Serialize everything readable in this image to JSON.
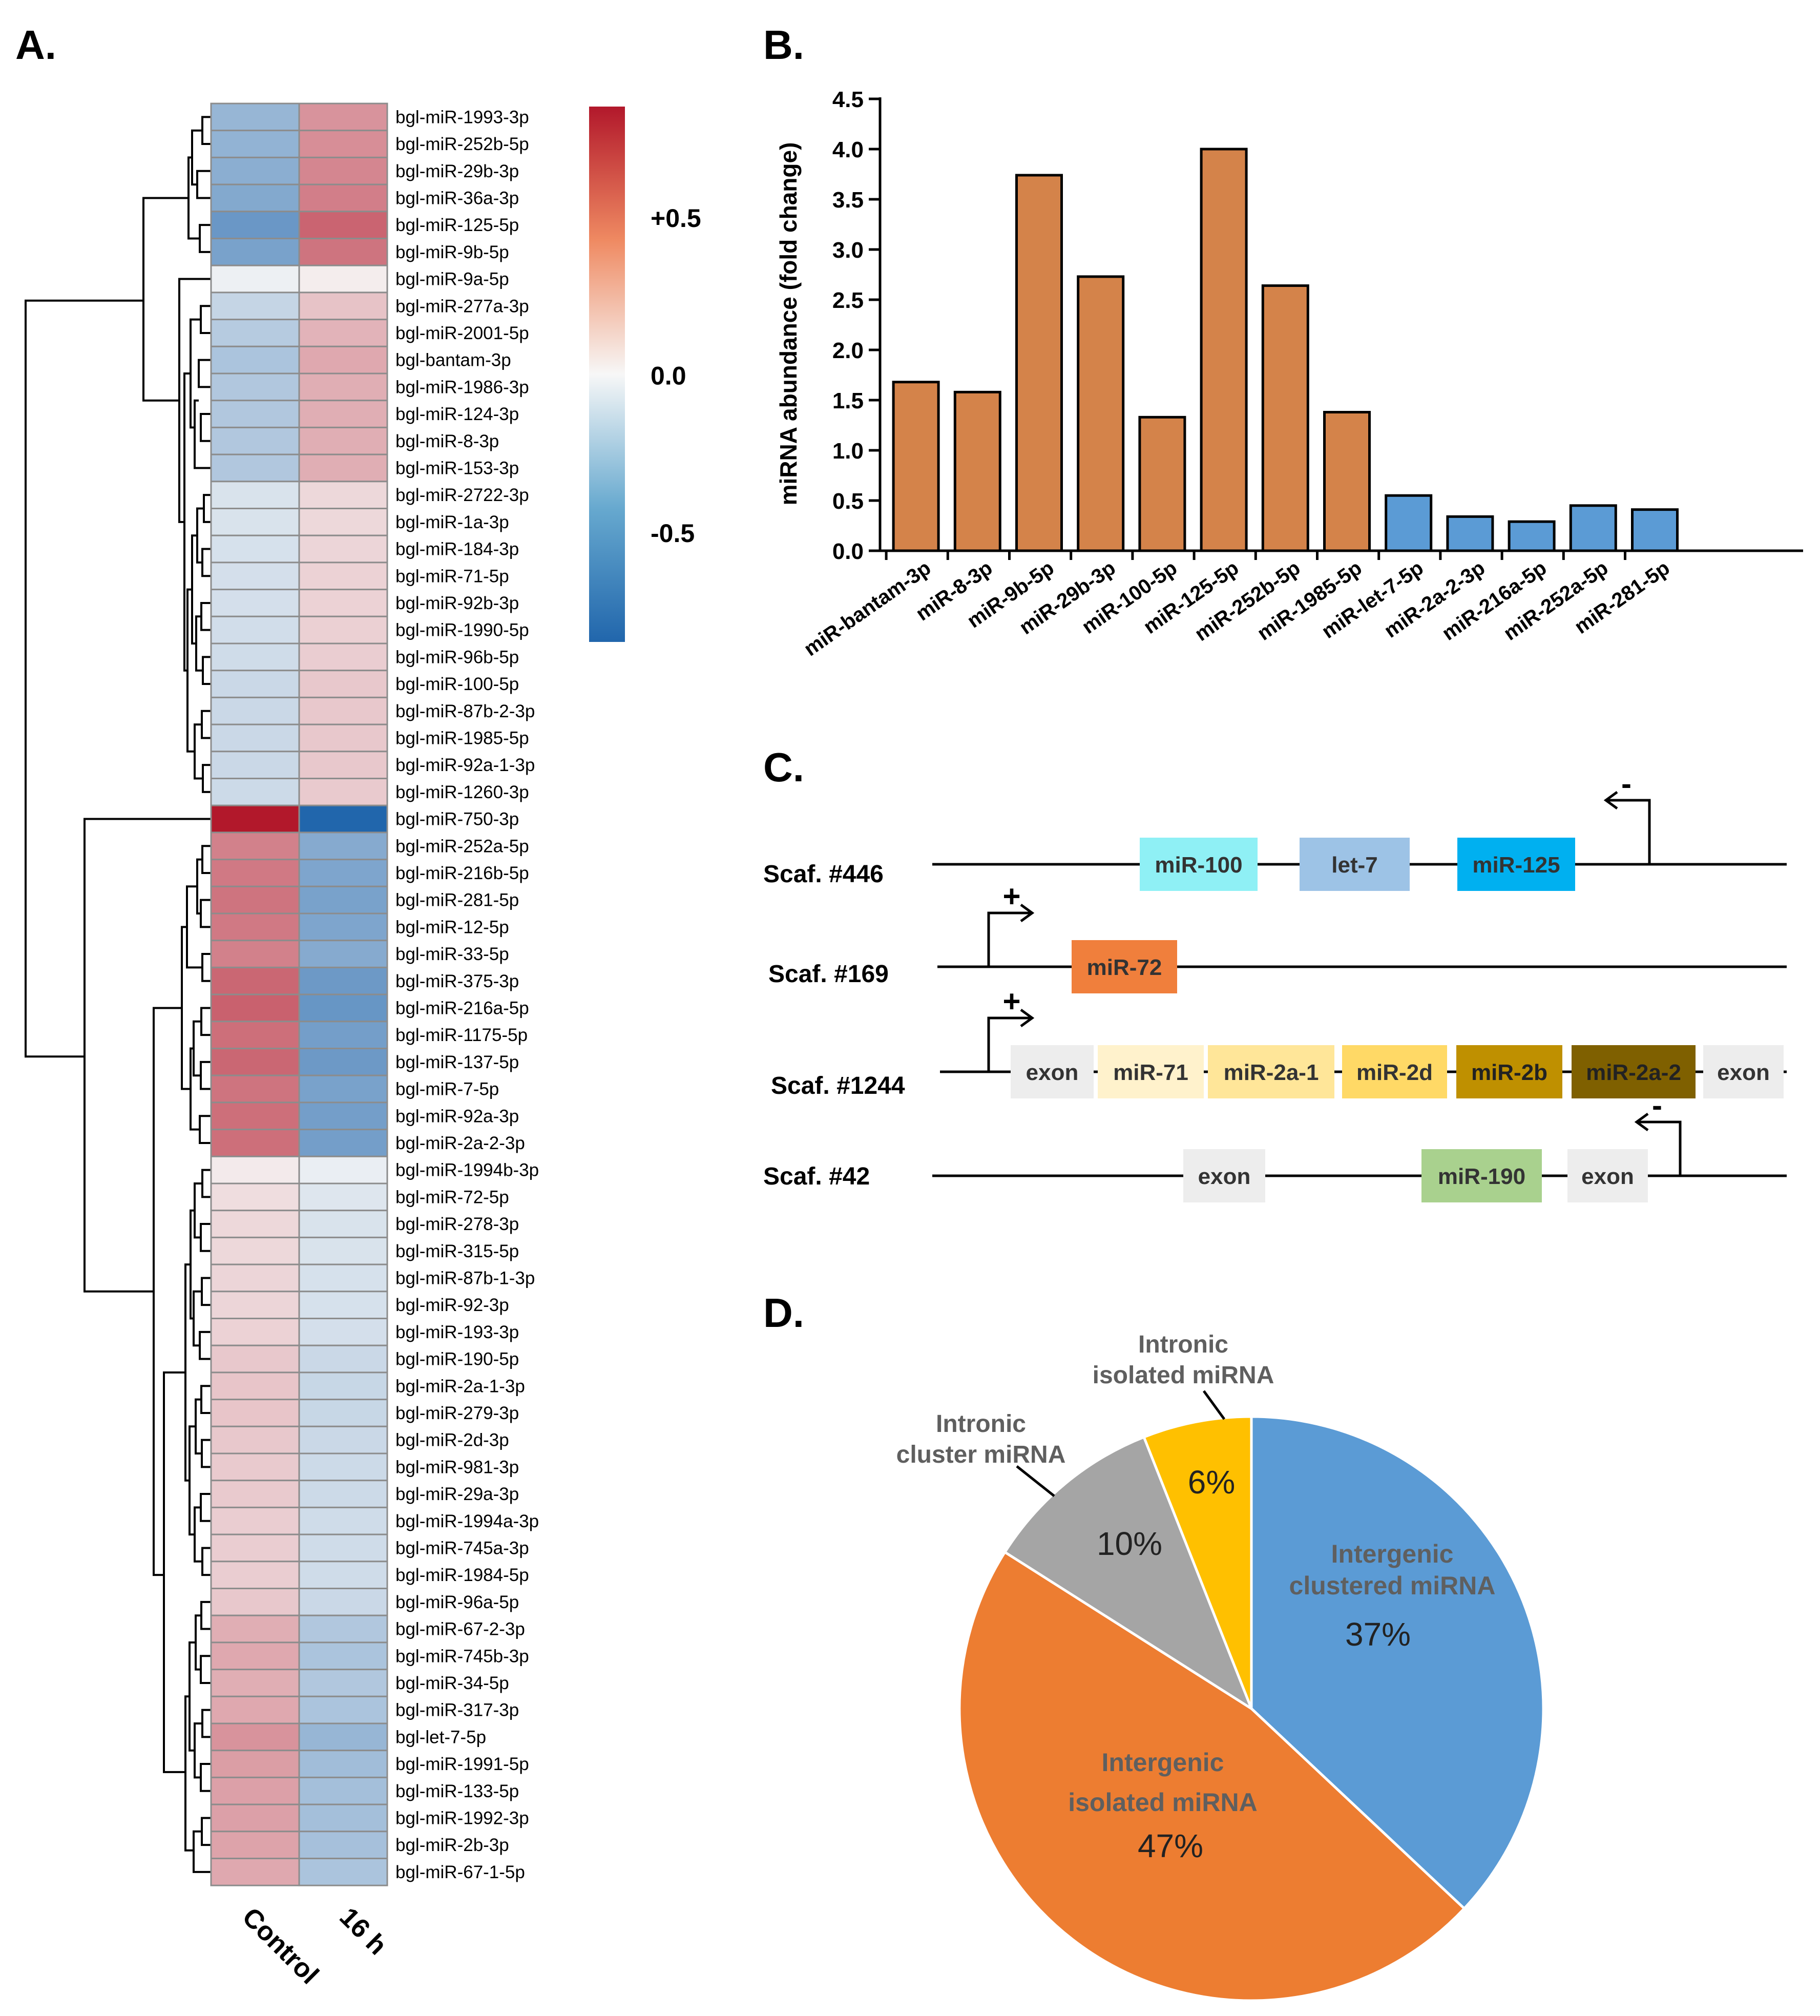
{
  "panel_labels": {
    "a": "A.",
    "b": "B.",
    "c": "C.",
    "d": "D."
  },
  "chart_data": [
    {
      "panel": "A",
      "type": "heatmap",
      "columns": [
        "Control",
        "16 h"
      ],
      "scale_ticks": [
        {
          "label": "+0.5",
          "value": 0.5
        },
        {
          "label": "0.0",
          "value": 0.0
        },
        {
          "label": "-0.5",
          "value": -0.5
        }
      ],
      "scale_range": [
        -0.85,
        0.85
      ],
      "colors": {
        "low": "#2166ac",
        "mid": "#f7f7f7",
        "high": "#b2182b"
      },
      "rows": [
        {
          "label": "bgl-miR-1993-3p",
          "values": [
            -0.38,
            0.38
          ]
        },
        {
          "label": "bgl-miR-252b-5p",
          "values": [
            -0.4,
            0.4
          ]
        },
        {
          "label": "bgl-miR-29b-3p",
          "values": [
            -0.43,
            0.43
          ]
        },
        {
          "label": "bgl-miR-36a-3p",
          "values": [
            -0.46,
            0.46
          ]
        },
        {
          "label": "bgl-miR-125-5p",
          "values": [
            -0.56,
            0.56
          ]
        },
        {
          "label": "bgl-miR-9b-5p",
          "values": [
            -0.5,
            0.5
          ]
        },
        {
          "label": "bgl-miR-9a-5p",
          "values": [
            -0.04,
            0.04
          ]
        },
        {
          "label": "bgl-miR-277a-3p",
          "values": [
            -0.2,
            0.2
          ]
        },
        {
          "label": "bgl-miR-2001-5p",
          "values": [
            -0.26,
            0.26
          ]
        },
        {
          "label": "bgl-bantam-3p",
          "values": [
            -0.3,
            0.3
          ]
        },
        {
          "label": "bgl-miR-1986-3p",
          "values": [
            -0.28,
            0.28
          ]
        },
        {
          "label": "bgl-miR-124-3p",
          "values": [
            -0.28,
            0.28
          ]
        },
        {
          "label": "bgl-miR-8-3p",
          "values": [
            -0.28,
            0.28
          ]
        },
        {
          "label": "bgl-miR-153-3p",
          "values": [
            -0.28,
            0.28
          ]
        },
        {
          "label": "bgl-miR-2722-3p",
          "values": [
            -0.12,
            0.12
          ]
        },
        {
          "label": "bgl-miR-1a-3p",
          "values": [
            -0.12,
            0.12
          ]
        },
        {
          "label": "bgl-miR-184-3p",
          "values": [
            -0.13,
            0.13
          ]
        },
        {
          "label": "bgl-miR-71-5p",
          "values": [
            -0.14,
            0.14
          ]
        },
        {
          "label": "bgl-miR-92b-3p",
          "values": [
            -0.14,
            0.14
          ]
        },
        {
          "label": "bgl-miR-1990-5p",
          "values": [
            -0.15,
            0.15
          ]
        },
        {
          "label": "bgl-miR-96b-5p",
          "values": [
            -0.16,
            0.16
          ]
        },
        {
          "label": "bgl-miR-100-5p",
          "values": [
            -0.18,
            0.18
          ]
        },
        {
          "label": "bgl-miR-87b-2-3p",
          "values": [
            -0.18,
            0.18
          ]
        },
        {
          "label": "bgl-miR-1985-5p",
          "values": [
            -0.18,
            0.18
          ]
        },
        {
          "label": "bgl-miR-92a-1-3p",
          "values": [
            -0.18,
            0.18
          ]
        },
        {
          "label": "bgl-miR-1260-3p",
          "values": [
            -0.17,
            0.17
          ]
        },
        {
          "label": "bgl-miR-750-3p",
          "values": [
            0.85,
            -0.85
          ]
        },
        {
          "label": "bgl-miR-252a-5p",
          "values": [
            0.45,
            -0.45
          ]
        },
        {
          "label": "bgl-miR-216b-5p",
          "values": [
            0.48,
            -0.48
          ]
        },
        {
          "label": "bgl-miR-281-5p",
          "values": [
            0.5,
            -0.5
          ]
        },
        {
          "label": "bgl-miR-12-5p",
          "values": [
            0.48,
            -0.48
          ]
        },
        {
          "label": "bgl-miR-33-5p",
          "values": [
            0.45,
            -0.45
          ]
        },
        {
          "label": "bgl-miR-375-3p",
          "values": [
            0.55,
            -0.55
          ]
        },
        {
          "label": "bgl-miR-216a-5p",
          "values": [
            0.57,
            -0.57
          ]
        },
        {
          "label": "bgl-miR-1175-5p",
          "values": [
            0.52,
            -0.52
          ]
        },
        {
          "label": "bgl-miR-137-5p",
          "values": [
            0.55,
            -0.55
          ]
        },
        {
          "label": "bgl-miR-7-5p",
          "values": [
            0.5,
            -0.5
          ]
        },
        {
          "label": "bgl-miR-92a-3p",
          "values": [
            0.52,
            -0.52
          ]
        },
        {
          "label": "bgl-miR-2a-2-3p",
          "values": [
            0.52,
            -0.52
          ]
        },
        {
          "label": "bgl-miR-1994b-3p",
          "values": [
            0.05,
            -0.05
          ]
        },
        {
          "label": "bgl-miR-72-5p",
          "values": [
            0.1,
            -0.1
          ]
        },
        {
          "label": "bgl-miR-278-3p",
          "values": [
            0.12,
            -0.12
          ]
        },
        {
          "label": "bgl-miR-315-5p",
          "values": [
            0.12,
            -0.12
          ]
        },
        {
          "label": "bgl-miR-87b-1-3p",
          "values": [
            0.13,
            -0.13
          ]
        },
        {
          "label": "bgl-miR-92-3p",
          "values": [
            0.13,
            -0.13
          ]
        },
        {
          "label": "bgl-miR-193-3p",
          "values": [
            0.14,
            -0.14
          ]
        },
        {
          "label": "bgl-miR-190-5p",
          "values": [
            0.18,
            -0.18
          ]
        },
        {
          "label": "bgl-miR-2a-1-3p",
          "values": [
            0.19,
            -0.19
          ]
        },
        {
          "label": "bgl-miR-279-3p",
          "values": [
            0.19,
            -0.19
          ]
        },
        {
          "label": "bgl-miR-2d-3p",
          "values": [
            0.18,
            -0.18
          ]
        },
        {
          "label": "bgl-miR-981-3p",
          "values": [
            0.17,
            -0.17
          ]
        },
        {
          "label": "bgl-miR-29a-3p",
          "values": [
            0.17,
            -0.17
          ]
        },
        {
          "label": "bgl-miR-1994a-3p",
          "values": [
            0.16,
            -0.16
          ]
        },
        {
          "label": "bgl-miR-745a-3p",
          "values": [
            0.16,
            -0.16
          ]
        },
        {
          "label": "bgl-miR-1984-5p",
          "values": [
            0.16,
            -0.16
          ]
        },
        {
          "label": "bgl-miR-96a-5p",
          "values": [
            0.18,
            -0.18
          ]
        },
        {
          "label": "bgl-miR-67-2-3p",
          "values": [
            0.28,
            -0.28
          ]
        },
        {
          "label": "bgl-miR-745b-3p",
          "values": [
            0.3,
            -0.3
          ]
        },
        {
          "label": "bgl-miR-34-5p",
          "values": [
            0.28,
            -0.28
          ]
        },
        {
          "label": "bgl-miR-317-3p",
          "values": [
            0.3,
            -0.3
          ]
        },
        {
          "label": "bgl-let-7-5p",
          "values": [
            0.38,
            -0.38
          ]
        },
        {
          "label": "bgl-miR-1991-5p",
          "values": [
            0.34,
            -0.34
          ]
        },
        {
          "label": "bgl-miR-133-5p",
          "values": [
            0.33,
            -0.33
          ]
        },
        {
          "label": "bgl-miR-1992-3p",
          "values": [
            0.33,
            -0.33
          ]
        },
        {
          "label": "bgl-miR-2b-3p",
          "values": [
            0.32,
            -0.32
          ]
        },
        {
          "label": "bgl-miR-67-1-5p",
          "values": [
            0.3,
            -0.3
          ]
        }
      ]
    },
    {
      "panel": "B",
      "type": "bar",
      "ylabel": "miRNA abundance (fold change)",
      "ylim": [
        0,
        4.5
      ],
      "yticks": [
        "0.0",
        "0.5",
        "1.0",
        "1.5",
        "2.0",
        "2.5",
        "3.0",
        "3.5",
        "4.0",
        "4.5"
      ],
      "categories": [
        "miR-bantam-3p",
        "miR-8-3p",
        "miR-9b-5p",
        "miR-29b-3p",
        "miR-100-5p",
        "miR-125-5p",
        "miR-252b-5p",
        "miR-1985-5p",
        "miR-let-7-5p",
        "miR-2a-2-3p",
        "miR-216a-5p",
        "miR-252a-5p",
        "miR-281-5p"
      ],
      "values": [
        1.68,
        1.58,
        3.74,
        2.73,
        1.33,
        4.0,
        2.64,
        1.38,
        0.55,
        0.34,
        0.29,
        0.45,
        0.41
      ],
      "bar_colors": [
        "#d4834a",
        "#d4834a",
        "#d4834a",
        "#d4834a",
        "#d4834a",
        "#d4834a",
        "#d4834a",
        "#d4834a",
        "#5b9bd5",
        "#5b9bd5",
        "#5b9bd5",
        "#5b9bd5",
        "#5b9bd5"
      ]
    },
    {
      "panel": "C",
      "type": "diagram",
      "scaffolds": [
        {
          "label": "Scaf. #446",
          "promoter": {
            "sign": "-",
            "direction": "left"
          },
          "boxes": [
            {
              "text": "miR-100",
              "color": "#8ff0f5"
            },
            {
              "text": "let-7",
              "color": "#9dc3e6"
            },
            {
              "text": "miR-125",
              "color": "#00b0f0"
            }
          ]
        },
        {
          "label": "Scaf. #169",
          "promoter": {
            "sign": "+",
            "direction": "right"
          },
          "boxes": [
            {
              "text": "miR-72",
              "color": "#f07f3c"
            }
          ]
        },
        {
          "label": "Scaf. #1244",
          "promoter": {
            "sign": "+",
            "direction": "right"
          },
          "boxes": [
            {
              "text": "exon",
              "color": "#ededed"
            },
            {
              "text": "miR-71",
              "color": "#fff2cc"
            },
            {
              "text": "miR-2a-1",
              "color": "#ffe699"
            },
            {
              "text": "miR-2d",
              "color": "#ffd966"
            },
            {
              "text": "miR-2b",
              "color": "#bf9000"
            },
            {
              "text": "miR-2a-2",
              "color": "#7f6000"
            },
            {
              "text": "exon",
              "color": "#ededed"
            }
          ]
        },
        {
          "label": "Scaf. #42",
          "promoter": {
            "sign": "-",
            "direction": "left"
          },
          "boxes": [
            {
              "text": "exon",
              "color": "#ededed"
            },
            {
              "text": "miR-190",
              "color": "#a9d18e"
            },
            {
              "text": "exon",
              "color": "#ededed"
            }
          ]
        }
      ]
    },
    {
      "panel": "D",
      "type": "pie",
      "slices": [
        {
          "label": "Intergenic clustered miRNA",
          "value": 37,
          "pct": "37%",
          "color": "#5b9bd5"
        },
        {
          "label": "Intergenic isolated miRNA",
          "value": 47,
          "pct": "47%",
          "color": "#ed7d31"
        },
        {
          "label": "Intronic cluster miRNA",
          "value": 10,
          "pct": "10%",
          "color": "#a5a5a5"
        },
        {
          "label": "Intronic isolated miRNA",
          "value": 6,
          "pct": "6%",
          "color": "#ffc000"
        }
      ],
      "label_lines": {
        "intergenic_clustered": [
          "Intergenic",
          "clustered miRNA"
        ],
        "intergenic_isolated": [
          "Intergenic",
          "isolated miRNA"
        ],
        "intronic_cluster": [
          "Intronic",
          "cluster miRNA"
        ],
        "intronic_isolated": [
          "Intronic",
          "isolated miRNA"
        ]
      }
    }
  ]
}
